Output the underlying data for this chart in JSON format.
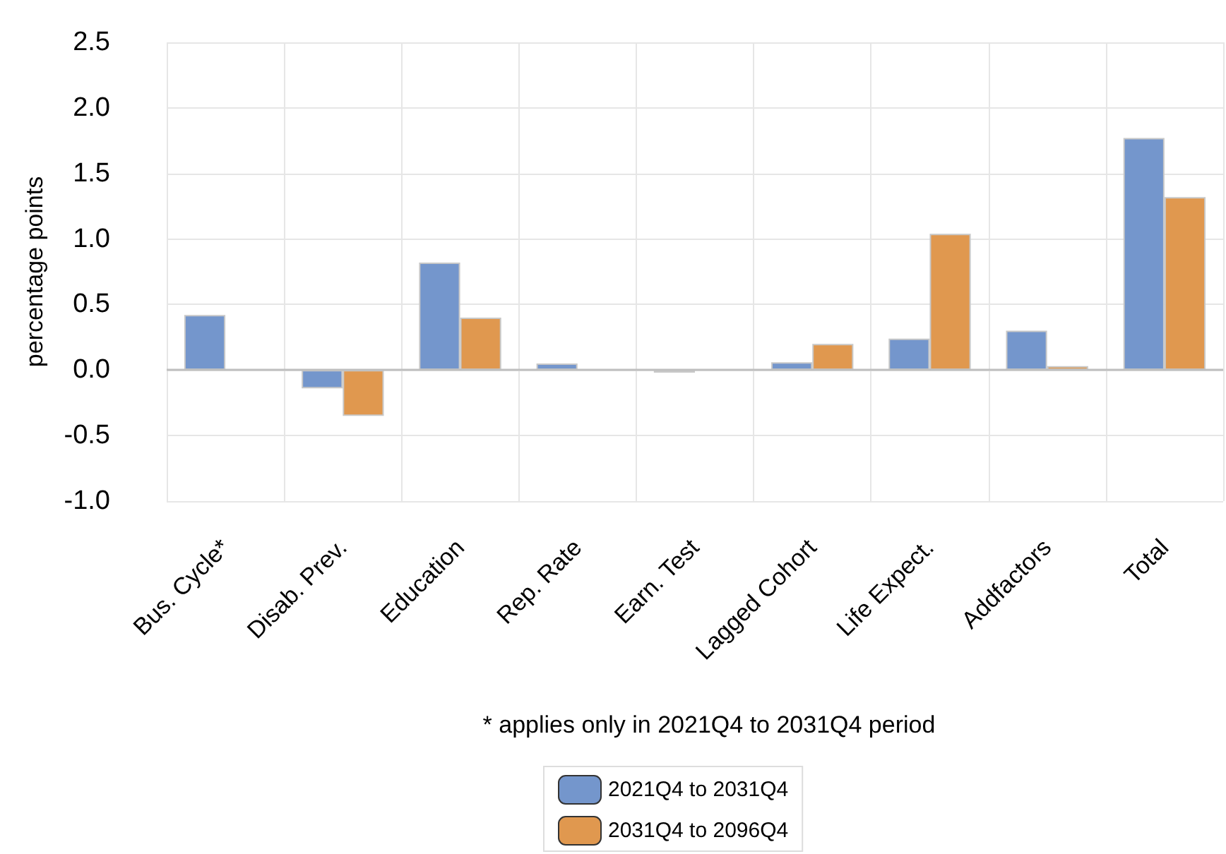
{
  "chart_data": {
    "type": "bar",
    "ylabel": "percentage points",
    "annotations": [
      "* applies only in 2021Q4 to 2031Q4 period"
    ],
    "categories": [
      "Bus. Cycle*",
      "Disab. Prev.",
      "Education",
      "Rep. Rate",
      "Earn. Test",
      "Lagged Cohort",
      "Life Expect.",
      "Addfactors",
      "Total"
    ],
    "series": [
      {
        "name": "2021Q4 to 2031Q4",
        "color": "#7496cc",
        "values": [
          0.42,
          -0.14,
          0.82,
          0.05,
          -0.02,
          0.06,
          0.24,
          0.3,
          1.77
        ]
      },
      {
        "name": "2031Q4 to 2096Q4",
        "color": "#e0984f",
        "values": [
          null,
          -0.35,
          0.4,
          null,
          null,
          0.2,
          1.04,
          0.03,
          1.32
        ]
      }
    ],
    "ylim": [
      -1.0,
      2.5
    ],
    "yticks": [
      {
        "value": -1,
        "label": "-1.0"
      },
      {
        "value": -0.5,
        "label": "-0.5"
      },
      {
        "value": 0,
        "label": "0.0"
      },
      {
        "value": 0.5,
        "label": "0.5"
      },
      {
        "value": 1,
        "label": "1.0"
      },
      {
        "value": 1.5,
        "label": "1.5"
      },
      {
        "value": 2,
        "label": "2.0"
      },
      {
        "value": 2.5,
        "label": "2.5"
      }
    ],
    "grid": true,
    "legend": "bottom"
  }
}
